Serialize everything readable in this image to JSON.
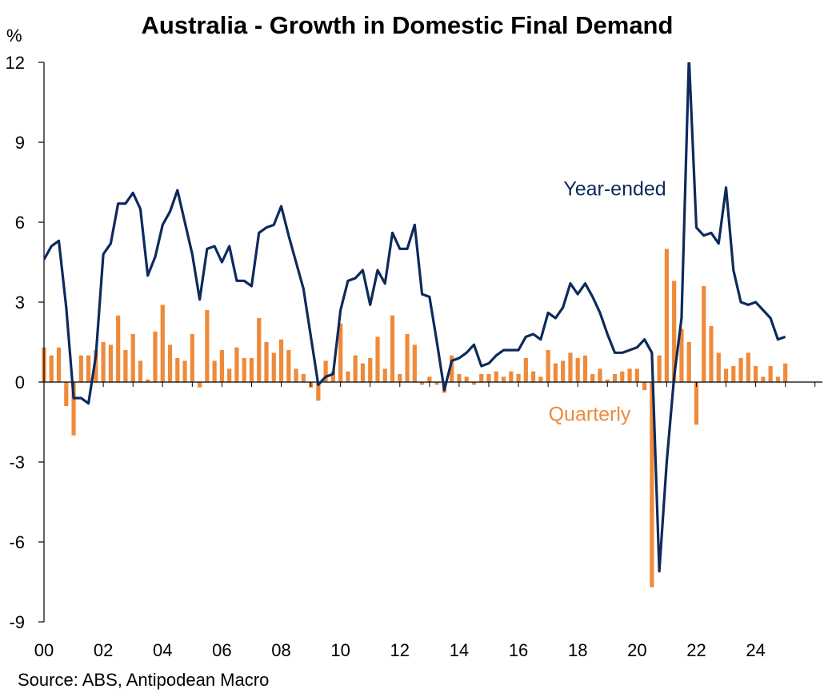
{
  "chart_data": {
    "type": "bar+line",
    "title": "Australia - Growth in Domestic Final Demand",
    "unit_label": "%",
    "source": "Source: ABS, Antipodean Macro",
    "ylim": [
      -9,
      12
    ],
    "yticks": [
      "12",
      "9",
      "6",
      "3",
      "0",
      "-3",
      "-6",
      "-9"
    ],
    "ytick_values": [
      12,
      9,
      6,
      3,
      0,
      -3,
      -6,
      -9
    ],
    "xlim": [
      2000.0,
      2026.25
    ],
    "xticks": [
      "00",
      "02",
      "04",
      "06",
      "08",
      "10",
      "12",
      "14",
      "16",
      "18",
      "20",
      "22",
      "24"
    ],
    "xtick_values": [
      2000,
      2002,
      2004,
      2006,
      2008,
      2010,
      2012,
      2014,
      2016,
      2018,
      2020,
      2022,
      2024
    ],
    "grid": false,
    "colors": {
      "year_ended": "#0d2a5c",
      "quarterly": "#ee8a3a",
      "axis": "#000000"
    },
    "series": [
      {
        "name": "Quarterly",
        "type": "bar",
        "start": 2000.0,
        "step": 0.25,
        "values": [
          1.3,
          1.0,
          1.3,
          -0.9,
          -2.0,
          1.0,
          1.0,
          1.2,
          1.5,
          1.4,
          2.5,
          1.2,
          1.8,
          0.8,
          0.1,
          1.9,
          2.9,
          1.4,
          0.9,
          0.8,
          1.8,
          -0.2,
          2.7,
          0.8,
          1.2,
          0.5,
          1.3,
          0.9,
          0.9,
          2.4,
          1.5,
          1.1,
          1.6,
          1.2,
          0.5,
          0.3,
          -0.2,
          -0.7,
          0.8,
          0.4,
          2.2,
          0.4,
          1.0,
          0.7,
          0.9,
          1.7,
          0.5,
          2.5,
          0.3,
          1.8,
          1.4,
          -0.1,
          0.2,
          -0.1,
          -0.4,
          1.0,
          0.3,
          0.2,
          -0.1,
          0.3,
          0.3,
          0.4,
          0.2,
          0.4,
          0.3,
          0.9,
          0.4,
          0.2,
          1.2,
          0.7,
          0.8,
          1.1,
          0.9,
          1.0,
          0.3,
          0.5,
          0.1,
          0.3,
          0.4,
          0.5,
          0.5,
          -0.3,
          -7.7,
          1.0,
          5.0,
          3.8,
          2.0,
          1.5,
          -1.6,
          3.6,
          2.1,
          1.1,
          0.5,
          0.6,
          0.9,
          1.1,
          0.6,
          0.2,
          0.6,
          0.2,
          0.7
        ]
      },
      {
        "name": "Year-ended",
        "type": "line",
        "start": 2000.0,
        "step": 0.25,
        "values": [
          4.6,
          5.1,
          5.3,
          2.8,
          -0.6,
          -0.6,
          -0.8,
          1.0,
          4.8,
          5.2,
          6.7,
          6.7,
          7.1,
          6.5,
          4.0,
          4.7,
          5.9,
          6.4,
          7.2,
          6.0,
          4.8,
          3.1,
          5.0,
          5.1,
          4.5,
          5.1,
          3.8,
          3.8,
          3.6,
          5.6,
          5.8,
          5.9,
          6.6,
          5.5,
          4.5,
          3.5,
          1.7,
          -0.1,
          0.2,
          0.3,
          2.7,
          3.8,
          3.9,
          4.2,
          2.9,
          4.2,
          3.7,
          5.6,
          5.0,
          5.0,
          5.9,
          3.3,
          3.2,
          1.5,
          -0.3,
          0.8,
          0.9,
          1.1,
          1.4,
          0.6,
          0.7,
          1.0,
          1.2,
          1.2,
          1.2,
          1.7,
          1.8,
          1.6,
          2.6,
          2.4,
          2.8,
          3.7,
          3.3,
          3.7,
          3.2,
          2.6,
          1.8,
          1.1,
          1.1,
          1.2,
          1.3,
          1.6,
          1.1,
          -7.1,
          -3.0,
          0.2,
          2.4,
          12.2,
          5.8,
          5.5,
          5.6,
          5.2,
          7.3,
          4.2,
          3.0,
          2.9,
          3.0,
          2.7,
          2.4,
          1.6,
          1.7
        ]
      }
    ],
    "annotations": [
      {
        "text": "Year-ended",
        "x": 2019.25,
        "y": 7.0,
        "color": "#0d2a5c"
      },
      {
        "text": "Quarterly",
        "x": 2018.4,
        "y": -1.45,
        "color": "#ee8a3a"
      }
    ]
  }
}
